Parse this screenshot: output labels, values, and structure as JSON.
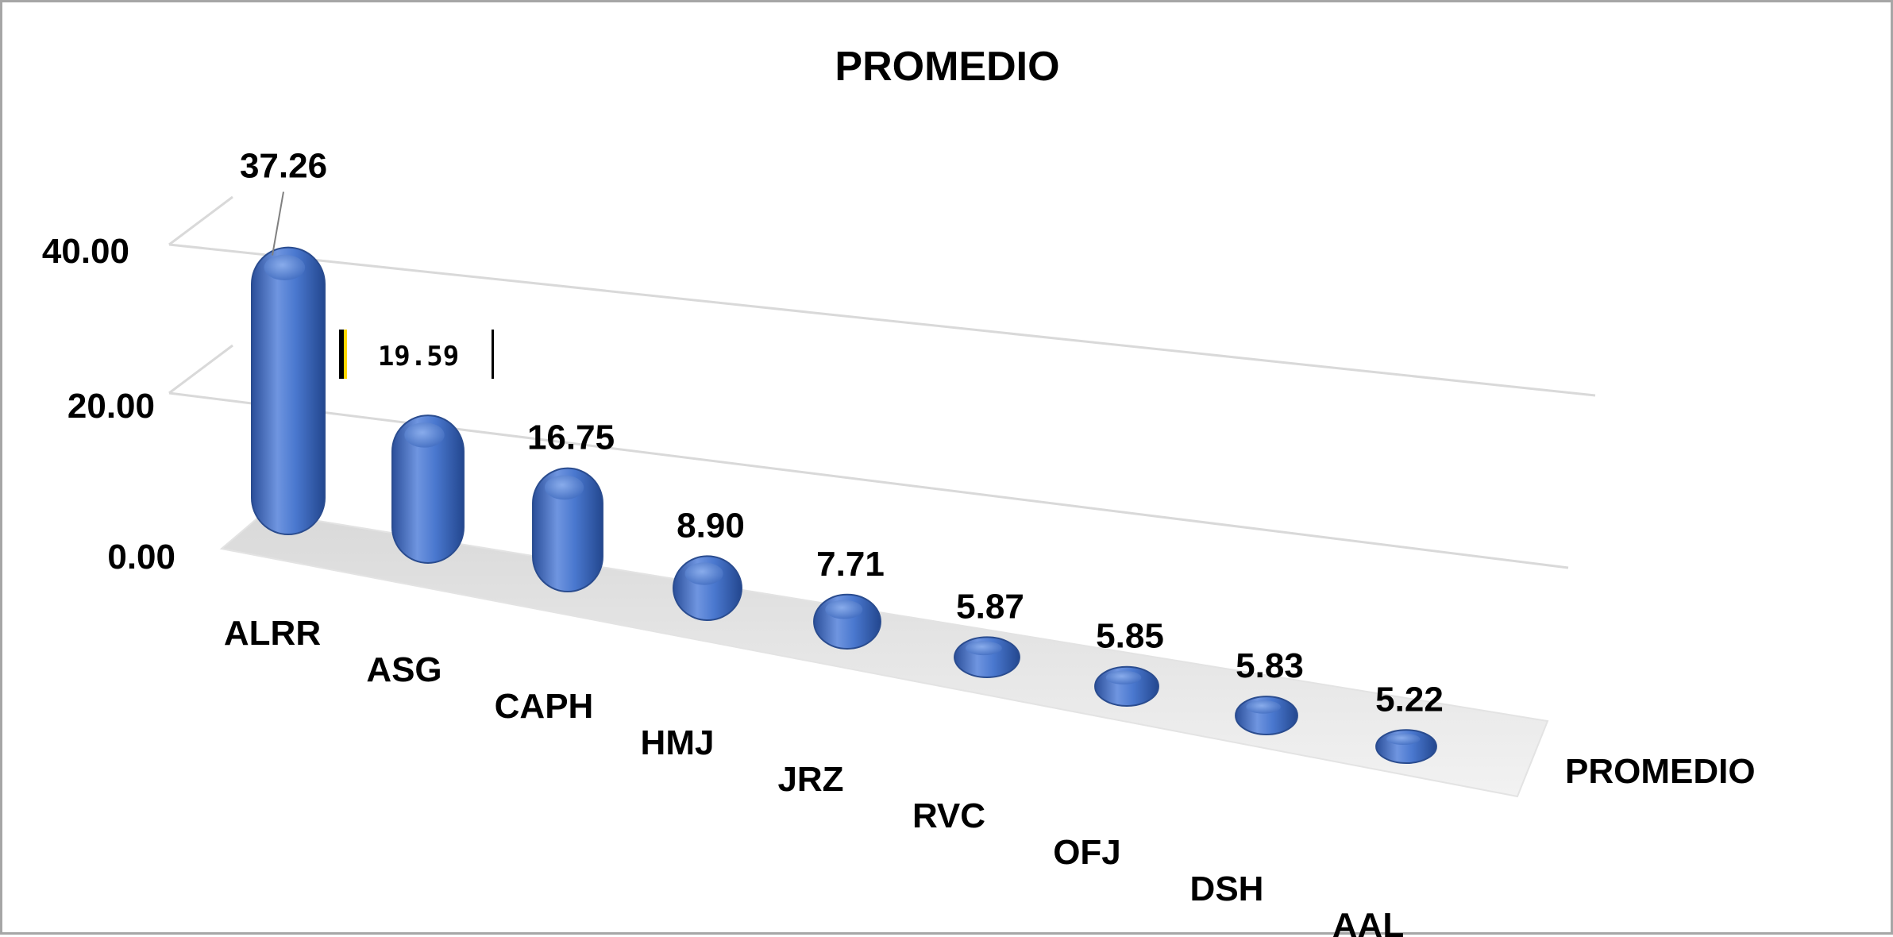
{
  "chart_data": {
    "type": "bar",
    "title": "PROMEDIO",
    "categories": [
      "ALRR",
      "ASG",
      "CAPH",
      "HMJ",
      "JRZ",
      "RVC",
      "OFJ",
      "DSH",
      "AAL"
    ],
    "series": [
      {
        "name": "PROMEDIO",
        "values": [
          37.26,
          19.59,
          16.75,
          8.9,
          7.71,
          5.87,
          5.85,
          5.83,
          5.22
        ]
      }
    ],
    "data_labels": [
      "37.26",
      "19.59",
      "16.75",
      "8.90",
      "7.71",
      "5.87",
      "5.85",
      "5.83",
      "5.22"
    ],
    "y_ticks": [
      "0.00",
      "20.00",
      "40.00"
    ],
    "ylim": [
      0,
      40
    ],
    "bar_color": "#4472c4",
    "gridlines": true,
    "style": "3d-cylinder"
  }
}
